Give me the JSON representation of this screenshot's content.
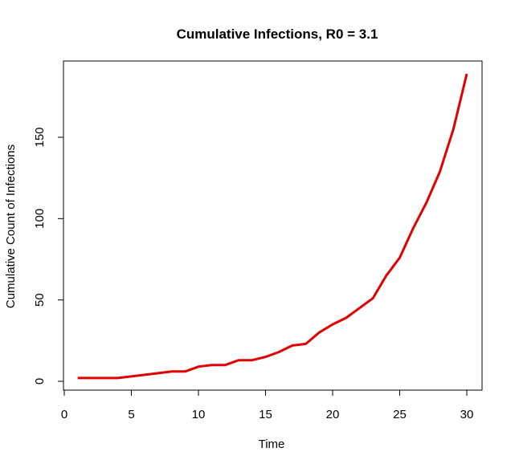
{
  "chart_data": {
    "type": "line",
    "title": "Cumulative Infections, R0 = 3.1",
    "xlabel": "Time",
    "ylabel": "Cumulative Count of Infections",
    "xlim": [
      0,
      30
    ],
    "ylim": [
      0,
      190
    ],
    "xticks": [
      0,
      5,
      10,
      15,
      20,
      25,
      30
    ],
    "yticks": [
      0,
      50,
      100,
      150
    ],
    "grid": false,
    "legend": "none",
    "series": [
      {
        "color": "#e00000",
        "x": [
          1,
          2,
          3,
          4,
          5,
          6,
          7,
          8,
          9,
          10,
          11,
          12,
          13,
          14,
          15,
          16,
          17,
          18,
          19,
          20,
          21,
          22,
          23,
          24,
          25,
          26,
          27,
          28,
          29,
          30
        ],
        "y": [
          2,
          2,
          2,
          2,
          3,
          4,
          5,
          6,
          6,
          9,
          10,
          10,
          13,
          13,
          15,
          18,
          22,
          23,
          30,
          35,
          39,
          45,
          51,
          65,
          76,
          94,
          110,
          129,
          155,
          189
        ]
      }
    ]
  }
}
